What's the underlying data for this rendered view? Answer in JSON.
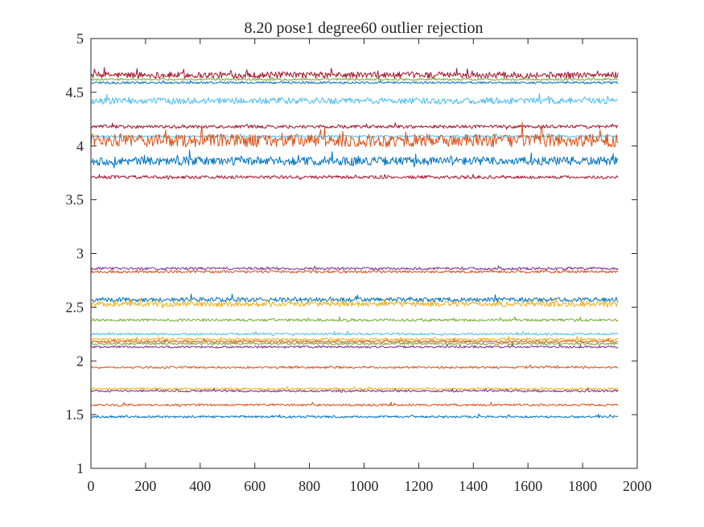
{
  "chart_data": {
    "type": "line",
    "title": "8.20 pose1  degree60 outlier rejection",
    "xlabel": "",
    "ylabel": "",
    "xlim": [
      0,
      2000
    ],
    "ylim": [
      1,
      5
    ],
    "x_ticks": [
      0,
      200,
      400,
      600,
      800,
      1000,
      1200,
      1400,
      1600,
      1800,
      2000
    ],
    "x_tick_labels": [
      "0",
      "200",
      "400",
      "600",
      "800",
      "1000",
      "1200",
      "1400",
      "1600",
      "1800",
      "2000"
    ],
    "y_ticks": [
      1,
      1.5,
      2,
      2.5,
      3,
      3.5,
      4,
      4.5,
      5
    ],
    "y_tick_labels": [
      "1",
      "1.5",
      "2",
      "2.5",
      "3",
      "3.5",
      "4",
      "4.5",
      "5"
    ],
    "grid": false,
    "x_range_of_samples": [
      1,
      1930
    ],
    "series": [
      {
        "color": "#A2142F",
        "mean": 4.66,
        "amplitude": 0.03
      },
      {
        "color": "#77AC30",
        "mean": 4.62,
        "amplitude": 0.01
      },
      {
        "color": "#0072BD",
        "mean": 4.59,
        "amplitude": 0.01
      },
      {
        "color": "#4DBEEE",
        "mean": 4.42,
        "amplitude": 0.03
      },
      {
        "color": "#A2142F",
        "mean": 4.18,
        "amplitude": 0.015
      },
      {
        "color": "#4DBEEE",
        "mean": 4.09,
        "amplitude": 0.01
      },
      {
        "color": "#D95319",
        "mean": 4.05,
        "amplitude": 0.06
      },
      {
        "color": "#0072BD",
        "mean": 3.86,
        "amplitude": 0.04
      },
      {
        "color": "#A2142F",
        "mean": 3.71,
        "amplitude": 0.015
      },
      {
        "color": "#7E2F8E",
        "mean": 2.86,
        "amplitude": 0.012
      },
      {
        "color": "#D95319",
        "mean": 2.83,
        "amplitude": 0.012
      },
      {
        "color": "#0072BD",
        "mean": 2.57,
        "amplitude": 0.02
      },
      {
        "color": "#EDB120",
        "mean": 2.53,
        "amplitude": 0.025
      },
      {
        "color": "#77AC30",
        "mean": 2.38,
        "amplitude": 0.012
      },
      {
        "color": "#4DBEEE",
        "mean": 2.25,
        "amplitude": 0.01
      },
      {
        "color": "#EDB120",
        "mean": 2.2,
        "amplitude": 0.012
      },
      {
        "color": "#D95319",
        "mean": 2.18,
        "amplitude": 0.01
      },
      {
        "color": "#77AC30",
        "mean": 2.16,
        "amplitude": 0.01
      },
      {
        "color": "#7E2F8E",
        "mean": 2.13,
        "amplitude": 0.01
      },
      {
        "color": "#D95319",
        "mean": 1.94,
        "amplitude": 0.01
      },
      {
        "color": "#EDB120",
        "mean": 1.74,
        "amplitude": 0.01
      },
      {
        "color": "#7E2F8E",
        "mean": 1.72,
        "amplitude": 0.01
      },
      {
        "color": "#D95319",
        "mean": 1.59,
        "amplitude": 0.01
      },
      {
        "color": "#0072BD",
        "mean": 1.48,
        "amplitude": 0.01
      }
    ]
  }
}
